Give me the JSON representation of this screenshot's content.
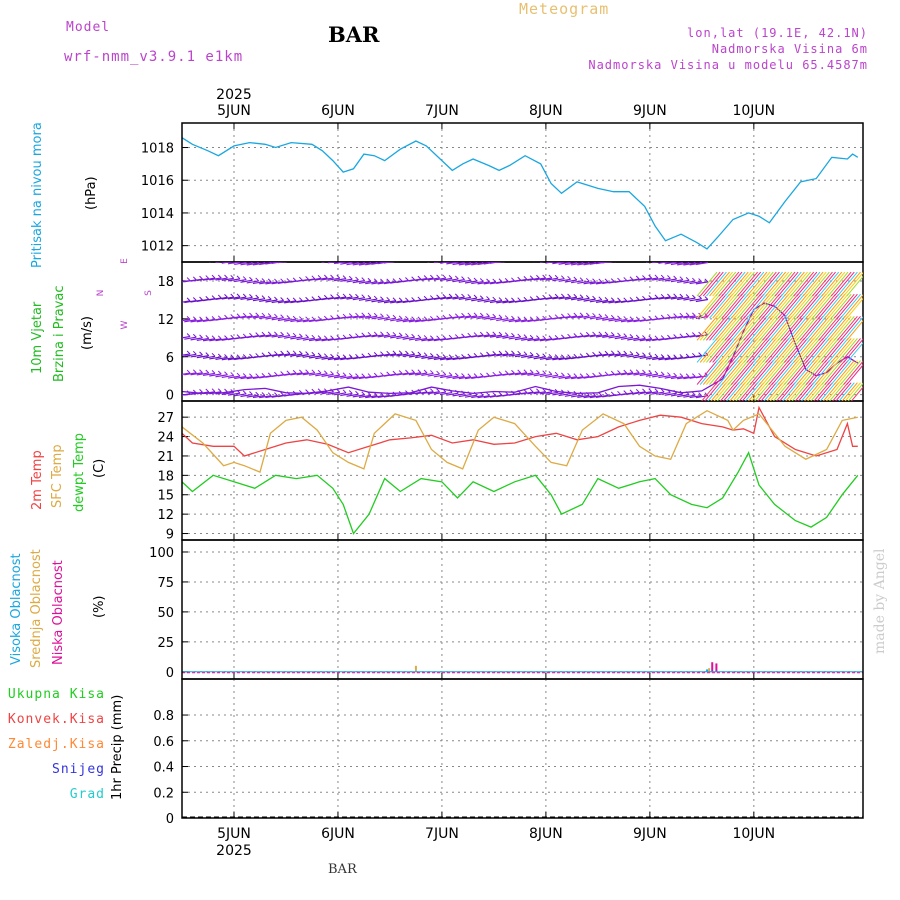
{
  "header": {
    "model_label": "Model",
    "model_name": "wrf-nmm_v3.9.1 e1km",
    "station": "BAR",
    "product": "Meteogram",
    "location": "lon,lat (19.1E, 42.1N)",
    "elevation": "Nadmorska Visina 6m",
    "model_elevation": "Nadmorska Visina u modelu 65.4587m",
    "footer_station": "BAR",
    "credit": "made by Angel"
  },
  "colors": {
    "pressure": "#1aa7e0",
    "wind_label": "#22bb22",
    "wind_barbs": "#7b18d6",
    "temp2m": "#ee4444",
    "sfc_temp": "#ddaa44",
    "dewpt": "#22cc22",
    "cloud_high": "#1aa7e0",
    "cloud_mid": "#ddaa44",
    "cloud_low": "#dd1199",
    "precip_total": "#22cc22",
    "precip_conv": "#ee4444",
    "precip_frozen": "#ff8833",
    "snow": "#3333dd",
    "hail": "#22cccc",
    "compass": "#bb44cc",
    "credit": "#cccccc"
  },
  "time_axis": {
    "year": "2025",
    "days": [
      "5JUN",
      "6JUN",
      "7JUN",
      "8JUN",
      "9JUN",
      "10JUN"
    ]
  },
  "panels": {
    "pressure": {
      "label": "Pritisak na nivou mora",
      "unit": "(hPa)"
    },
    "wind": {
      "label1": "10m Vjetar",
      "label2": "Brzina i Pravac",
      "unit": "(m/s)",
      "compass": {
        "n": "N",
        "s": "S",
        "e": "E",
        "w": "W"
      }
    },
    "temperature": {
      "label1": "2m Temp",
      "label2": "SFC Temp",
      "label3": "dewpt Temp",
      "unit": "(C)"
    },
    "clouds": {
      "label1": "Visoka Oblacnost",
      "label2": "Srednja Oblacnost",
      "label3": "Niska Oblacnost",
      "unit": "(%)"
    },
    "precip": {
      "label1": "Ukupna Kisa",
      "label2": "Konvek.Kisa",
      "label3": "Zaledj.Kisa",
      "label4": "Snijeg",
      "label5": "Grad",
      "unit": "1hr Precip (mm)"
    }
  },
  "chart_data": [
    {
      "type": "line",
      "panel": "pressure",
      "x_unit": "days since 2025-06-04 00:00",
      "ylim": [
        1011,
        1019.5
      ],
      "yticks": [
        1012,
        1014,
        1016,
        1018
      ],
      "grid": true,
      "series": [
        {
          "name": "Pritisak na nivou mora",
          "color": "#1aa7e0",
          "points": [
            [
              0.5,
              1018.6
            ],
            [
              0.6,
              1018.2
            ],
            [
              0.75,
              1017.8
            ],
            [
              0.85,
              1017.5
            ],
            [
              1.0,
              1018.1
            ],
            [
              1.15,
              1018.3
            ],
            [
              1.3,
              1018.2
            ],
            [
              1.4,
              1018.0
            ],
            [
              1.55,
              1018.3
            ],
            [
              1.75,
              1018.2
            ],
            [
              1.85,
              1017.8
            ],
            [
              1.95,
              1017.2
            ],
            [
              2.05,
              1016.5
            ],
            [
              2.15,
              1016.7
            ],
            [
              2.25,
              1017.6
            ],
            [
              2.35,
              1017.5
            ],
            [
              2.45,
              1017.2
            ],
            [
              2.6,
              1017.9
            ],
            [
              2.75,
              1018.4
            ],
            [
              2.85,
              1018.1
            ],
            [
              3.0,
              1017.2
            ],
            [
              3.1,
              1016.6
            ],
            [
              3.2,
              1017.0
            ],
            [
              3.3,
              1017.3
            ],
            [
              3.45,
              1016.9
            ],
            [
              3.55,
              1016.6
            ],
            [
              3.65,
              1016.9
            ],
            [
              3.8,
              1017.5
            ],
            [
              3.95,
              1017.0
            ],
            [
              4.05,
              1015.8
            ],
            [
              4.15,
              1015.2
            ],
            [
              4.3,
              1015.9
            ],
            [
              4.5,
              1015.5
            ],
            [
              4.65,
              1015.3
            ],
            [
              4.8,
              1015.3
            ],
            [
              4.95,
              1014.4
            ],
            [
              5.05,
              1013.2
            ],
            [
              5.15,
              1012.3
            ],
            [
              5.3,
              1012.7
            ],
            [
              5.45,
              1012.2
            ],
            [
              5.55,
              1011.8
            ],
            [
              5.65,
              1012.5
            ],
            [
              5.8,
              1013.6
            ],
            [
              5.95,
              1014.0
            ],
            [
              6.05,
              1013.8
            ],
            [
              6.15,
              1013.4
            ],
            [
              6.3,
              1014.7
            ],
            [
              6.45,
              1015.9
            ],
            [
              6.6,
              1016.1
            ],
            [
              6.75,
              1017.4
            ],
            [
              6.9,
              1017.3
            ],
            [
              6.95,
              1017.6
            ],
            [
              7.0,
              1017.4
            ]
          ]
        }
      ]
    },
    {
      "type": "line",
      "panel": "wind",
      "x_unit": "days since 2025-06-04 00:00",
      "ylim": [
        -1,
        21
      ],
      "yticks": [
        0,
        6,
        12,
        18
      ],
      "grid": true,
      "series": [
        {
          "name": "10m Vjetar",
          "color": "#7b18d6",
          "points": [
            [
              0.5,
              0.5
            ],
            [
              0.7,
              0.2
            ],
            [
              0.9,
              0.3
            ],
            [
              1.1,
              0.8
            ],
            [
              1.3,
              1.0
            ],
            [
              1.5,
              0.3
            ],
            [
              1.7,
              0.2
            ],
            [
              1.9,
              0.6
            ],
            [
              2.1,
              1.2
            ],
            [
              2.3,
              0.4
            ],
            [
              2.5,
              0.2
            ],
            [
              2.7,
              0.3
            ],
            [
              2.9,
              1.2
            ],
            [
              3.1,
              0.6
            ],
            [
              3.3,
              0.2
            ],
            [
              3.5,
              0.5
            ],
            [
              3.7,
              0.4
            ],
            [
              3.9,
              1.3
            ],
            [
              4.1,
              0.5
            ],
            [
              4.3,
              0.2
            ],
            [
              4.5,
              0.3
            ],
            [
              4.7,
              1.3
            ],
            [
              4.9,
              1.5
            ],
            [
              5.1,
              1.0
            ],
            [
              5.3,
              0.3
            ],
            [
              5.5,
              0.6
            ],
            [
              5.7,
              2.5
            ],
            [
              5.8,
              6.0
            ],
            [
              5.9,
              10.0
            ],
            [
              6.0,
              13.5
            ],
            [
              6.1,
              14.5
            ],
            [
              6.2,
              14.0
            ],
            [
              6.3,
              12.5
            ],
            [
              6.4,
              8.0
            ],
            [
              6.5,
              4.0
            ],
            [
              6.6,
              3.0
            ],
            [
              6.7,
              3.5
            ],
            [
              6.8,
              5.0
            ],
            [
              6.9,
              6.0
            ],
            [
              7.0,
              5.0
            ]
          ]
        }
      ]
    },
    {
      "type": "line",
      "panel": "temperature",
      "x_unit": "days since 2025-06-04 00:00",
      "ylim": [
        8,
        29.5
      ],
      "yticks": [
        9,
        12,
        15,
        18,
        21,
        24,
        27
      ],
      "grid": true,
      "series": [
        {
          "name": "2m Temp",
          "color": "#ee4444",
          "points": [
            [
              0.5,
              24.5
            ],
            [
              0.6,
              23.0
            ],
            [
              0.8,
              22.5
            ],
            [
              1.0,
              22.5
            ],
            [
              1.1,
              21.0
            ],
            [
              1.3,
              22.0
            ],
            [
              1.5,
              23.0
            ],
            [
              1.7,
              23.5
            ],
            [
              1.9,
              22.8
            ],
            [
              2.1,
              21.5
            ],
            [
              2.3,
              22.5
            ],
            [
              2.5,
              23.5
            ],
            [
              2.7,
              23.8
            ],
            [
              2.9,
              24.2
            ],
            [
              3.1,
              23.0
            ],
            [
              3.3,
              23.5
            ],
            [
              3.5,
              22.8
            ],
            [
              3.7,
              23.0
            ],
            [
              3.9,
              24.0
            ],
            [
              4.1,
              24.5
            ],
            [
              4.3,
              23.5
            ],
            [
              4.5,
              24.0
            ],
            [
              4.7,
              25.5
            ],
            [
              4.9,
              26.5
            ],
            [
              5.1,
              27.3
            ],
            [
              5.3,
              27.0
            ],
            [
              5.5,
              26.0
            ],
            [
              5.7,
              25.5
            ],
            [
              5.8,
              25.0
            ],
            [
              5.9,
              25.2
            ],
            [
              6.0,
              24.5
            ],
            [
              6.05,
              28.5
            ],
            [
              6.2,
              24.0
            ],
            [
              6.4,
              22.0
            ],
            [
              6.6,
              21.0
            ],
            [
              6.8,
              22.0
            ],
            [
              6.9,
              26.0
            ],
            [
              6.95,
              22.5
            ],
            [
              7.0,
              22.5
            ]
          ]
        },
        {
          "name": "SFC Temp",
          "color": "#ddaa44",
          "points": [
            [
              0.5,
              25.5
            ],
            [
              0.7,
              23.0
            ],
            [
              0.9,
              19.5
            ],
            [
              1.0,
              20.0
            ],
            [
              1.1,
              19.5
            ],
            [
              1.25,
              18.5
            ],
            [
              1.35,
              24.5
            ],
            [
              1.5,
              26.5
            ],
            [
              1.65,
              27.0
            ],
            [
              1.8,
              25.0
            ],
            [
              1.95,
              21.5
            ],
            [
              2.1,
              20.0
            ],
            [
              2.25,
              19.0
            ],
            [
              2.35,
              24.5
            ],
            [
              2.55,
              27.5
            ],
            [
              2.75,
              26.5
            ],
            [
              2.9,
              22.0
            ],
            [
              3.05,
              20.0
            ],
            [
              3.2,
              19.0
            ],
            [
              3.35,
              25.0
            ],
            [
              3.5,
              27.0
            ],
            [
              3.7,
              26.0
            ],
            [
              3.9,
              22.5
            ],
            [
              4.05,
              20.0
            ],
            [
              4.2,
              19.5
            ],
            [
              4.35,
              25.0
            ],
            [
              4.55,
              27.5
            ],
            [
              4.75,
              26.0
            ],
            [
              4.9,
              22.5
            ],
            [
              5.05,
              21.0
            ],
            [
              5.2,
              20.5
            ],
            [
              5.35,
              26.0
            ],
            [
              5.55,
              28.0
            ],
            [
              5.75,
              26.5
            ],
            [
              5.8,
              25.0
            ],
            [
              5.9,
              26.5
            ],
            [
              6.05,
              27.5
            ],
            [
              6.3,
              22.5
            ],
            [
              6.5,
              20.5
            ],
            [
              6.7,
              22.0
            ],
            [
              6.85,
              26.5
            ],
            [
              7.0,
              27.0
            ]
          ]
        },
        {
          "name": "dewpt Temp",
          "color": "#22cc22",
          "points": [
            [
              0.5,
              17.0
            ],
            [
              0.6,
              15.5
            ],
            [
              0.8,
              18.0
            ],
            [
              1.0,
              17.0
            ],
            [
              1.2,
              16.0
            ],
            [
              1.4,
              18.0
            ],
            [
              1.6,
              17.5
            ],
            [
              1.8,
              18.0
            ],
            [
              1.95,
              16.0
            ],
            [
              2.05,
              13.5
            ],
            [
              2.15,
              9.0
            ],
            [
              2.3,
              12.0
            ],
            [
              2.45,
              17.5
            ],
            [
              2.6,
              15.5
            ],
            [
              2.8,
              17.5
            ],
            [
              3.0,
              17.0
            ],
            [
              3.15,
              14.5
            ],
            [
              3.3,
              17.0
            ],
            [
              3.5,
              15.5
            ],
            [
              3.7,
              17.0
            ],
            [
              3.9,
              18.0
            ],
            [
              4.05,
              15.0
            ],
            [
              4.15,
              12.0
            ],
            [
              4.35,
              13.5
            ],
            [
              4.5,
              17.5
            ],
            [
              4.7,
              16.0
            ],
            [
              4.9,
              17.0
            ],
            [
              5.05,
              17.5
            ],
            [
              5.2,
              15.0
            ],
            [
              5.4,
              13.5
            ],
            [
              5.55,
              13.0
            ],
            [
              5.7,
              14.5
            ],
            [
              5.85,
              18.5
            ],
            [
              5.95,
              21.5
            ],
            [
              6.05,
              16.5
            ],
            [
              6.2,
              13.5
            ],
            [
              6.4,
              11.0
            ],
            [
              6.55,
              10.0
            ],
            [
              6.7,
              11.5
            ],
            [
              6.85,
              15.0
            ],
            [
              7.0,
              18.0
            ]
          ]
        }
      ]
    },
    {
      "type": "bar",
      "panel": "clouds",
      "x_unit": "days since 2025-06-04 00:00",
      "ylim": [
        -6,
        110
      ],
      "yticks": [
        0,
        25,
        50,
        75,
        100
      ],
      "grid": true,
      "series": [
        {
          "name": "Visoka Oblacnost",
          "color": "#1aa7e0",
          "points": [
            [
              5.55,
              2
            ]
          ]
        },
        {
          "name": "Srednja Oblacnost",
          "color": "#ddaa44",
          "points": [
            [
              2.75,
              5
            ],
            [
              5.57,
              3
            ]
          ]
        },
        {
          "name": "Niska Oblacnost",
          "color": "#dd1199",
          "points": [
            [
              5.6,
              8
            ],
            [
              5.64,
              7
            ]
          ]
        }
      ]
    },
    {
      "type": "bar",
      "panel": "precip",
      "x_unit": "days since 2025-06-04 00:00",
      "ylim": [
        0,
        1.08
      ],
      "yticks": [
        0,
        0.2,
        0.4,
        0.6,
        0.8
      ],
      "grid": true,
      "series": [
        {
          "name": "Ukupna Kisa",
          "color": "#22cc22",
          "points": []
        },
        {
          "name": "Konvek.Kisa",
          "color": "#ee4444",
          "points": []
        },
        {
          "name": "Zaledj.Kisa",
          "color": "#ff8833",
          "points": []
        },
        {
          "name": "Snijeg",
          "color": "#3333dd",
          "points": []
        },
        {
          "name": "Grad",
          "color": "#22cccc",
          "points": []
        }
      ]
    }
  ]
}
